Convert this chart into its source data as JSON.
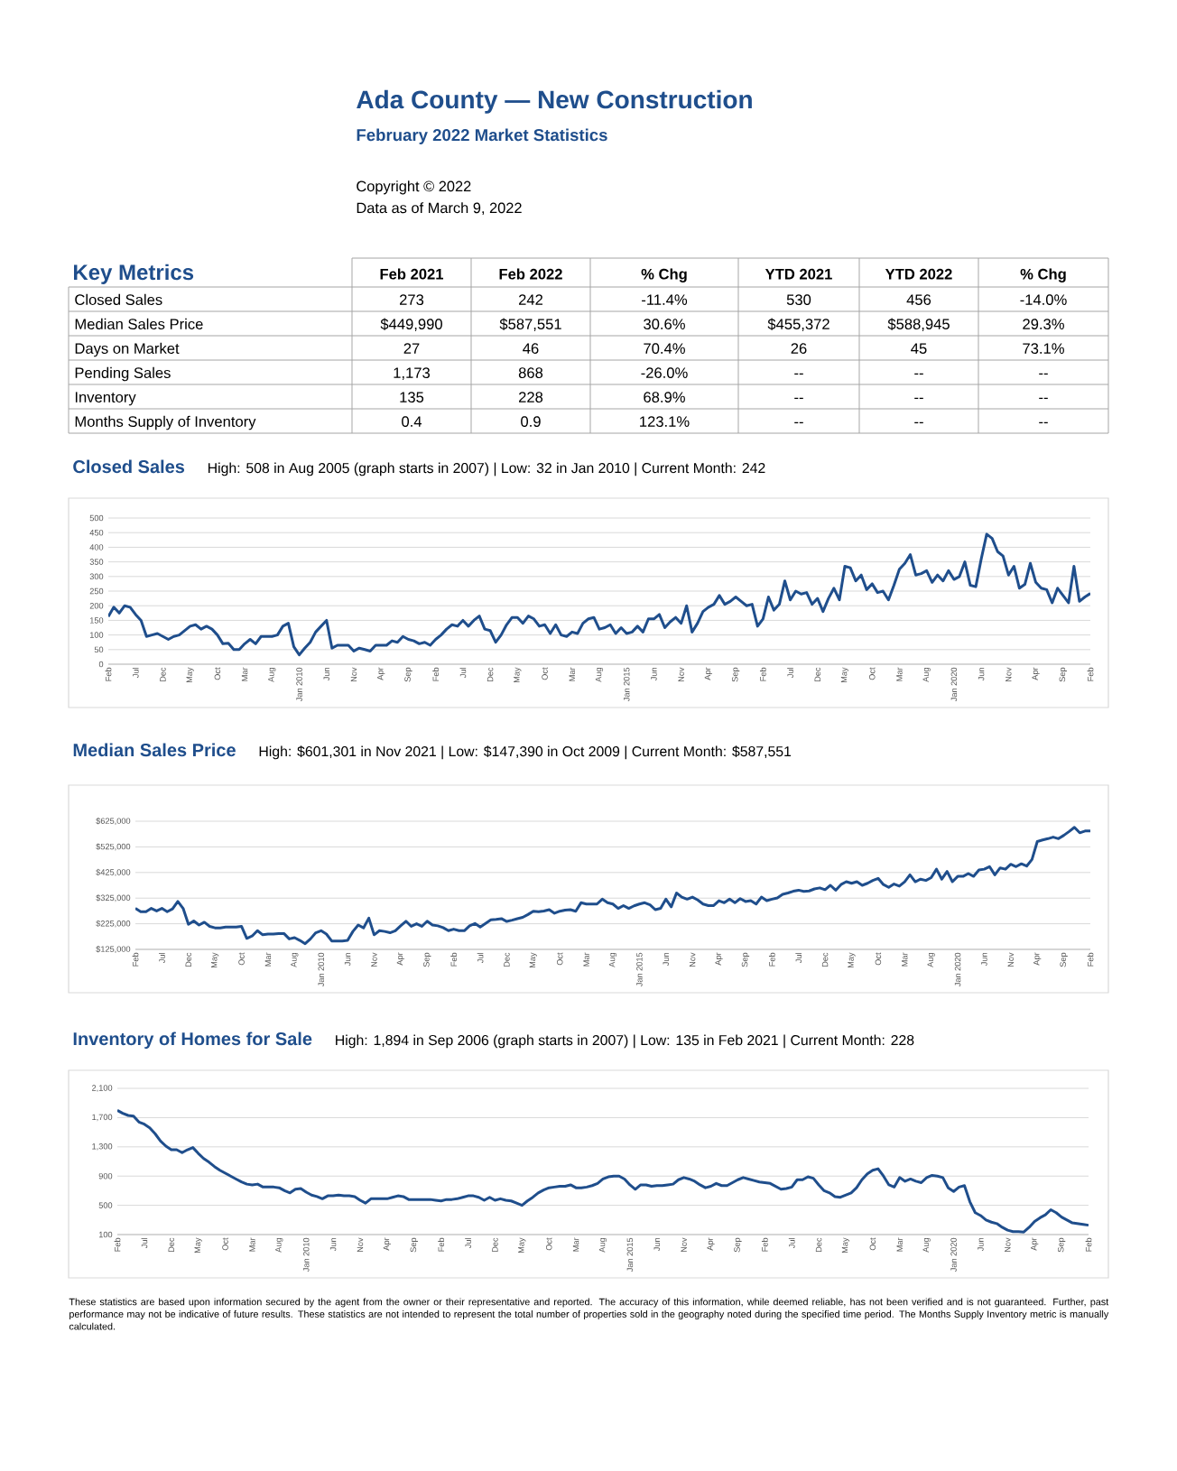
{
  "chart_data": [
    {
      "type": "other",
      "title": "Ada County — New Construction",
      "subtitle": "February 2022 Market Statistics",
      "annotations": [
        "Copyright © 2022",
        "Data as of March 9, 2022"
      ]
    },
    {
      "type": "other",
      "title": "Key Metrics",
      "categories": [
        "Feb 2021",
        "Feb 2022",
        "% Chg",
        "YTD 2021",
        "YTD 2022",
        "% Chg"
      ],
      "y_categories": [
        "Closed Sales",
        "Median Sales Price",
        "Days on Market",
        "Pending Sales",
        "Inventory",
        "Months Supply of Inventory"
      ],
      "cell_labels": [
        [
          "273",
          "242",
          "-11.4%",
          "530",
          "456",
          "-14.0%"
        ],
        [
          "$449,990",
          "$587,551",
          "30.6%",
          "$455,372",
          "$588,945",
          "29.3%"
        ],
        [
          "27",
          "46",
          "70.4%",
          "26",
          "45",
          "73.1%"
        ],
        [
          "1,173",
          "868",
          "-26.0%",
          "--",
          "--",
          "--"
        ],
        [
          "135",
          "228",
          "68.9%",
          "--",
          "--",
          "--"
        ],
        [
          "0.4",
          "0.9",
          "123.1%",
          "--",
          "--",
          "--"
        ]
      ]
    },
    {
      "type": "line",
      "title": "Closed Sales",
      "subtitle": "High: 508 in Aug 2005 (graph starts in 2007) | Low: 32 in Jan 2010 | Current Month: 242",
      "color": "#1f4e8c",
      "grid": "y",
      "ylim": [
        0,
        500
      ],
      "yticks": [
        0,
        50,
        100,
        150,
        200,
        250,
        300,
        350,
        400,
        450,
        500
      ],
      "categories": [
        "Feb",
        null,
        null,
        null,
        null,
        "Jul",
        null,
        null,
        null,
        null,
        "Dec",
        null,
        null,
        null,
        null,
        "May",
        null,
        null,
        null,
        null,
        "Oct",
        null,
        null,
        null,
        null,
        "Mar",
        null,
        null,
        null,
        null,
        "Aug",
        null,
        null,
        null,
        null,
        "Jan 2010",
        null,
        null,
        null,
        null,
        "Jun",
        null,
        null,
        null,
        null,
        "Nov",
        null,
        null,
        null,
        null,
        "Apr",
        null,
        null,
        null,
        null,
        "Sep",
        null,
        null,
        null,
        null,
        "Feb",
        null,
        null,
        null,
        null,
        "Jul",
        null,
        null,
        null,
        null,
        "Dec",
        null,
        null,
        null,
        null,
        "May",
        null,
        null,
        null,
        null,
        "Oct",
        null,
        null,
        null,
        null,
        "Mar",
        null,
        null,
        null,
        null,
        "Aug",
        null,
        null,
        null,
        null,
        "Jan 2015",
        null,
        null,
        null,
        null,
        "Jun",
        null,
        null,
        null,
        null,
        "Nov",
        null,
        null,
        null,
        null,
        "Apr",
        null,
        null,
        null,
        null,
        "Sep",
        null,
        null,
        null,
        null,
        "Feb",
        null,
        null,
        null,
        null,
        "Jul",
        null,
        null,
        null,
        null,
        "Dec",
        null,
        null,
        null,
        null,
        "May",
        null,
        null,
        null,
        null,
        "Oct",
        null,
        null,
        null,
        null,
        "Mar",
        null,
        null,
        null,
        null,
        "Aug",
        null,
        null,
        null,
        null,
        "Jan 2020",
        null,
        null,
        null,
        null,
        "Jun",
        null,
        null,
        null,
        null,
        "Nov",
        null,
        null,
        null,
        null,
        "Apr",
        null,
        null,
        null,
        null,
        "Sep",
        null,
        null,
        null,
        null,
        "Feb"
      ],
      "values": [
        163,
        195,
        175,
        200,
        195,
        170,
        150,
        95,
        100,
        105,
        95,
        85,
        95,
        100,
        115,
        130,
        135,
        120,
        130,
        120,
        100,
        70,
        72,
        50,
        50,
        70,
        85,
        70,
        95,
        95,
        95,
        100,
        130,
        140,
        60,
        32,
        55,
        75,
        110,
        130,
        150,
        55,
        65,
        65,
        65,
        45,
        55,
        50,
        45,
        65,
        65,
        65,
        80,
        75,
        95,
        85,
        80,
        70,
        75,
        65,
        85,
        100,
        120,
        135,
        130,
        150,
        130,
        150,
        165,
        120,
        115,
        75,
        100,
        135,
        160,
        160,
        140,
        165,
        155,
        130,
        135,
        105,
        135,
        100,
        95,
        110,
        105,
        140,
        155,
        160,
        120,
        125,
        135,
        105,
        125,
        105,
        110,
        130,
        110,
        155,
        155,
        170,
        125,
        145,
        160,
        140,
        200,
        110,
        140,
        180,
        195,
        205,
        235,
        205,
        215,
        230,
        215,
        200,
        205,
        130,
        155,
        230,
        185,
        205,
        285,
        220,
        250,
        240,
        245,
        205,
        225,
        180,
        225,
        260,
        220,
        335,
        330,
        285,
        305,
        255,
        275,
        245,
        250,
        220,
        270,
        325,
        345,
        375,
        305,
        310,
        320,
        280,
        305,
        285,
        320,
        290,
        300,
        350,
        270,
        265,
        360,
        445,
        430,
        385,
        370,
        305,
        335,
        260,
        273,
        345,
        280,
        260,
        255,
        210,
        260,
        235,
        210,
        335,
        215,
        230,
        242
      ]
    },
    {
      "type": "line",
      "title": "Median Sales Price",
      "subtitle": "High: $601,301 in Nov 2021 | Low: $147,390 in Oct 2009 | Current Month: $587,551",
      "color": "#1f4e8c",
      "grid": "y",
      "ylim": [
        125000,
        625000
      ],
      "yticks": [
        {
          "value": 125000,
          "label": "$125,000"
        },
        {
          "value": 225000,
          "label": "$225,000"
        },
        {
          "value": 325000,
          "label": "$325,000"
        },
        {
          "value": 425000,
          "label": "$425,000"
        },
        {
          "value": 525000,
          "label": "$525,000"
        },
        {
          "value": 625000,
          "label": "$625,000"
        }
      ],
      "categories": [
        "Feb",
        null,
        null,
        null,
        null,
        "Jul",
        null,
        null,
        null,
        null,
        "Dec",
        null,
        null,
        null,
        null,
        "May",
        null,
        null,
        null,
        null,
        "Oct",
        null,
        null,
        null,
        null,
        "Mar",
        null,
        null,
        null,
        null,
        "Aug",
        null,
        null,
        null,
        null,
        "Jan 2010",
        null,
        null,
        null,
        null,
        "Jun",
        null,
        null,
        null,
        null,
        "Nov",
        null,
        null,
        null,
        null,
        "Apr",
        null,
        null,
        null,
        null,
        "Sep",
        null,
        null,
        null,
        null,
        "Feb",
        null,
        null,
        null,
        null,
        "Jul",
        null,
        null,
        null,
        null,
        "Dec",
        null,
        null,
        null,
        null,
        "May",
        null,
        null,
        null,
        null,
        "Oct",
        null,
        null,
        null,
        null,
        "Mar",
        null,
        null,
        null,
        null,
        "Aug",
        null,
        null,
        null,
        null,
        "Jan 2015",
        null,
        null,
        null,
        null,
        "Jun",
        null,
        null,
        null,
        null,
        "Nov",
        null,
        null,
        null,
        null,
        "Apr",
        null,
        null,
        null,
        null,
        "Sep",
        null,
        null,
        null,
        null,
        "Feb",
        null,
        null,
        null,
        null,
        "Jul",
        null,
        null,
        null,
        null,
        "Dec",
        null,
        null,
        null,
        null,
        "May",
        null,
        null,
        null,
        null,
        "Oct",
        null,
        null,
        null,
        null,
        "Mar",
        null,
        null,
        null,
        null,
        "Aug",
        null,
        null,
        null,
        null,
        "Jan 2020",
        null,
        null,
        null,
        null,
        "Jun",
        null,
        null,
        null,
        null,
        "Nov",
        null,
        null,
        null,
        null,
        "Apr",
        null,
        null,
        null,
        null,
        "Sep",
        null,
        null,
        null,
        null,
        "Feb"
      ],
      "values": [
        285000,
        272000,
        272000,
        285000,
        275000,
        285000,
        272000,
        283000,
        312000,
        285000,
        223000,
        236000,
        220000,
        231000,
        215000,
        209000,
        209000,
        212000,
        212000,
        212000,
        215000,
        168000,
        177000,
        198000,
        182000,
        185000,
        185000,
        187000,
        187000,
        166000,
        171000,
        160000,
        147390,
        166000,
        190000,
        198000,
        185000,
        158000,
        158000,
        158000,
        160000,
        195000,
        220000,
        209000,
        247000,
        182000,
        198000,
        195000,
        190000,
        198000,
        217000,
        235000,
        215000,
        225000,
        215000,
        235000,
        220000,
        217000,
        210000,
        198000,
        204000,
        198000,
        198000,
        217000,
        226000,
        212000,
        226000,
        240000,
        242000,
        245000,
        234000,
        239000,
        245000,
        250000,
        261000,
        274000,
        272000,
        275000,
        280000,
        266000,
        274000,
        278000,
        280000,
        274000,
        307000,
        302000,
        302000,
        302000,
        321000,
        307000,
        302000,
        285000,
        296000,
        285000,
        295000,
        302000,
        307000,
        299000,
        280000,
        285000,
        321000,
        291000,
        345000,
        329000,
        321000,
        329000,
        318000,
        302000,
        296000,
        296000,
        315000,
        307000,
        321000,
        307000,
        323000,
        312000,
        315000,
        302000,
        329000,
        315000,
        321000,
        326000,
        340000,
        345000,
        352000,
        356000,
        351000,
        353000,
        361000,
        365000,
        358000,
        375000,
        356000,
        378000,
        389000,
        383000,
        389000,
        375000,
        383000,
        394000,
        402000,
        378000,
        367000,
        380000,
        372000,
        389000,
        416000,
        389000,
        399000,
        394000,
        405000,
        438000,
        399000,
        429000,
        389000,
        410000,
        410000,
        421000,
        410000,
        435000,
        438000,
        448000,
        416000,
        443000,
        438000,
        457000,
        448000,
        459000,
        449990,
        476000,
        546000,
        552000,
        557000,
        563000,
        557000,
        570000,
        585000,
        601301,
        580000,
        587000,
        587551
      ]
    },
    {
      "type": "line",
      "title": "Inventory of Homes for Sale",
      "subtitle": "High: 1,894 in Sep 2006 (graph starts in 2007) | Low: 135 in Feb 2021 | Current Month: 228",
      "color": "#1f4e8c",
      "grid": "y",
      "ylim": [
        100,
        2100
      ],
      "yticks": [
        100,
        500,
        900,
        {
          "value": 1300,
          "label": "1,300"
        },
        {
          "value": 1700,
          "label": "1,700"
        },
        {
          "value": 2100,
          "label": "2,100"
        }
      ],
      "categories": [
        "Feb",
        null,
        null,
        null,
        null,
        "Jul",
        null,
        null,
        null,
        null,
        "Dec",
        null,
        null,
        null,
        null,
        "May",
        null,
        null,
        null,
        null,
        "Oct",
        null,
        null,
        null,
        null,
        "Mar",
        null,
        null,
        null,
        null,
        "Aug",
        null,
        null,
        null,
        null,
        "Jan 2010",
        null,
        null,
        null,
        null,
        "Jun",
        null,
        null,
        null,
        null,
        "Nov",
        null,
        null,
        null,
        null,
        "Apr",
        null,
        null,
        null,
        null,
        "Sep",
        null,
        null,
        null,
        null,
        "Feb",
        null,
        null,
        null,
        null,
        "Jul",
        null,
        null,
        null,
        null,
        "Dec",
        null,
        null,
        null,
        null,
        "May",
        null,
        null,
        null,
        null,
        "Oct",
        null,
        null,
        null,
        null,
        "Mar",
        null,
        null,
        null,
        null,
        "Aug",
        null,
        null,
        null,
        null,
        "Jan 2015",
        null,
        null,
        null,
        null,
        "Jun",
        null,
        null,
        null,
        null,
        "Nov",
        null,
        null,
        null,
        null,
        "Apr",
        null,
        null,
        null,
        null,
        "Sep",
        null,
        null,
        null,
        null,
        "Feb",
        null,
        null,
        null,
        null,
        "Jul",
        null,
        null,
        null,
        null,
        "Dec",
        null,
        null,
        null,
        null,
        "May",
        null,
        null,
        null,
        null,
        "Oct",
        null,
        null,
        null,
        null,
        "Mar",
        null,
        null,
        null,
        null,
        "Aug",
        null,
        null,
        null,
        null,
        "Jan 2020",
        null,
        null,
        null,
        null,
        "Jun",
        null,
        null,
        null,
        null,
        "Nov",
        null,
        null,
        null,
        null,
        "Apr",
        null,
        null,
        null,
        null,
        "Sep",
        null,
        null,
        null,
        null,
        "Feb"
      ],
      "values": [
        1800,
        1760,
        1730,
        1720,
        1640,
        1610,
        1560,
        1480,
        1380,
        1310,
        1260,
        1260,
        1220,
        1260,
        1290,
        1210,
        1140,
        1090,
        1030,
        980,
        940,
        900,
        860,
        820,
        790,
        780,
        790,
        750,
        750,
        750,
        740,
        700,
        670,
        720,
        730,
        680,
        640,
        620,
        590,
        630,
        630,
        640,
        630,
        630,
        620,
        570,
        530,
        590,
        590,
        590,
        590,
        610,
        630,
        620,
        580,
        580,
        580,
        580,
        580,
        570,
        560,
        580,
        580,
        590,
        610,
        630,
        630,
        610,
        570,
        610,
        570,
        590,
        570,
        560,
        530,
        500,
        560,
        610,
        670,
        710,
        740,
        750,
        760,
        760,
        780,
        740,
        740,
        750,
        770,
        800,
        860,
        890,
        900,
        900,
        860,
        780,
        720,
        780,
        780,
        760,
        770,
        770,
        780,
        790,
        850,
        880,
        860,
        830,
        780,
        740,
        760,
        800,
        770,
        770,
        810,
        850,
        880,
        860,
        840,
        820,
        810,
        800,
        760,
        720,
        730,
        750,
        850,
        850,
        890,
        870,
        780,
        700,
        670,
        620,
        610,
        640,
        670,
        740,
        850,
        930,
        980,
        1000,
        900,
        780,
        750,
        880,
        830,
        860,
        830,
        810,
        880,
        910,
        900,
        880,
        740,
        690,
        750,
        770,
        550,
        400,
        360,
        300,
        270,
        250,
        200,
        160,
        140,
        140,
        135,
        200,
        280,
        330,
        370,
        440,
        400,
        340,
        300,
        260,
        250,
        240,
        228
      ],
      "annotations": [
        "These statistics are based upon information secured by the agent from the owner or their representative and reported. The accuracy of this information, while deemed reliable, has not been verified and is not guaranteed. Further, past performance may not be indicative of future results. These statistics are not intended to represent the total number of properties sold in the geography noted during the specified time period. The Months Supply Inventory metric is manually calculated."
      ]
    }
  ]
}
